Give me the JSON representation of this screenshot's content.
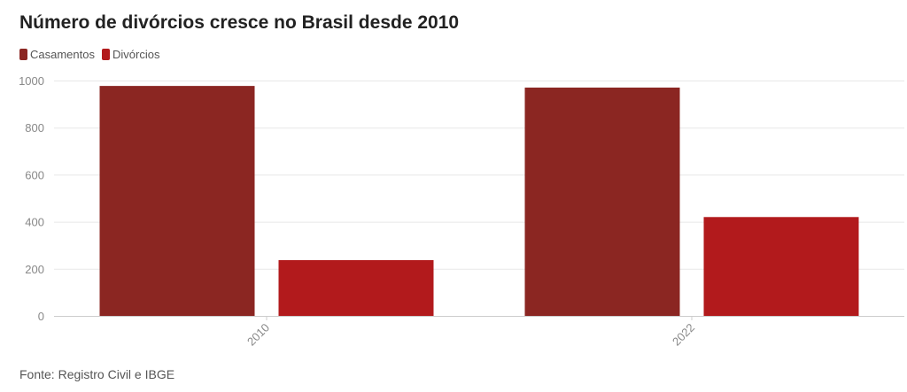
{
  "title": "Número de divórcios cresce no Brasil desde 2010",
  "source": "Fonte: Registro Civil e IBGE",
  "chart_data": {
    "type": "bar",
    "categories": [
      "2010",
      "2022"
    ],
    "series": [
      {
        "name": "Casamentos",
        "color": "#8b2622",
        "values": [
          977,
          970
        ]
      },
      {
        "name": "Divórcios",
        "color": "#b21a1c",
        "values": [
          237,
          420
        ]
      }
    ],
    "title": "Número de divórcios cresce no Brasil desde 2010",
    "xlabel": "",
    "ylabel": "",
    "ylim": [
      0,
      1000
    ],
    "yticks": [
      0,
      200,
      400,
      600,
      800,
      1000
    ],
    "grid": true,
    "legend_position": "top-left"
  }
}
